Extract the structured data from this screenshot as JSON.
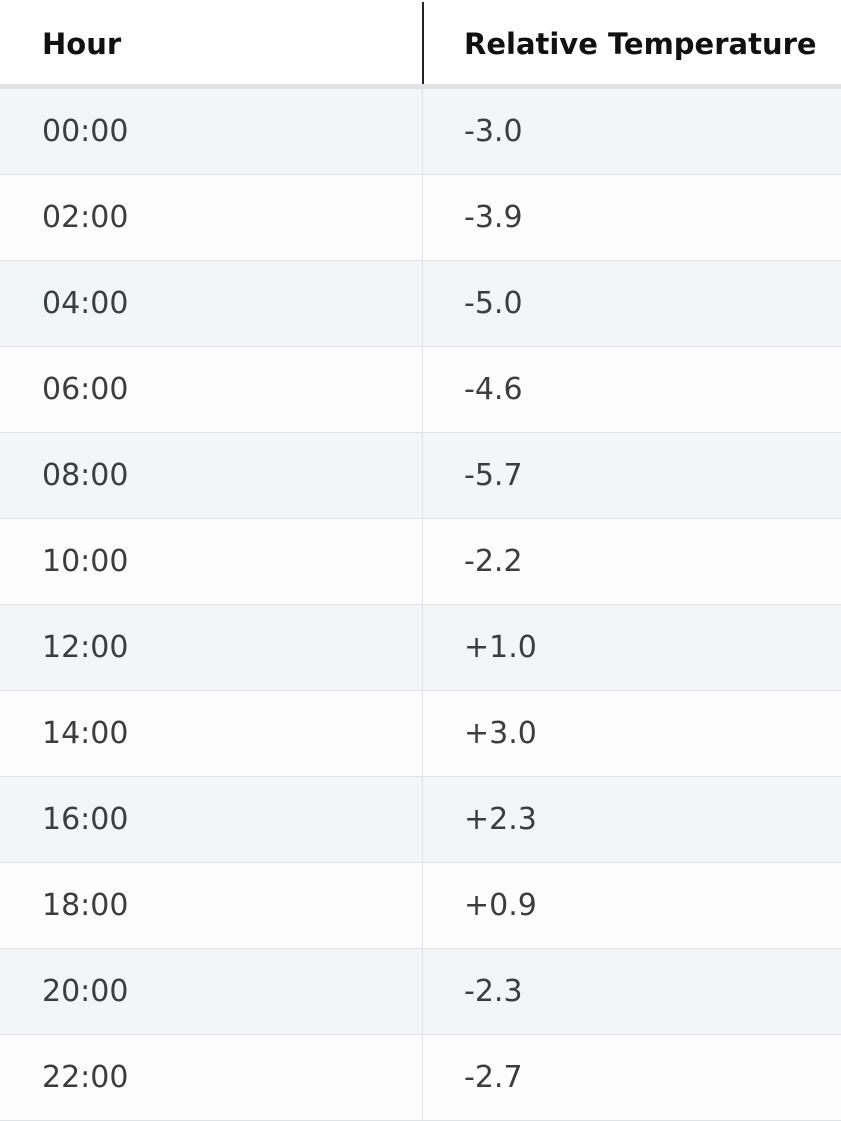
{
  "chart_data": {
    "type": "table",
    "columns": [
      "Hour",
      "Relative Temperature"
    ],
    "rows": [
      [
        "00:00",
        "-3.0"
      ],
      [
        "02:00",
        "-3.9"
      ],
      [
        "04:00",
        "-5.0"
      ],
      [
        "06:00",
        "-4.6"
      ],
      [
        "08:00",
        "-5.7"
      ],
      [
        "10:00",
        "-2.2"
      ],
      [
        "12:00",
        "+1.0"
      ],
      [
        "14:00",
        "+3.0"
      ],
      [
        "16:00",
        "+2.3"
      ],
      [
        "18:00",
        "+0.9"
      ],
      [
        "20:00",
        "-2.3"
      ],
      [
        "22:00",
        "-2.7"
      ]
    ]
  },
  "colors": {
    "header_text": "#111111",
    "cell_text": "#3d3d3d",
    "stripe": "#f3f6f7",
    "background": "#fdfdfd",
    "grid": "#dfe3e5"
  }
}
